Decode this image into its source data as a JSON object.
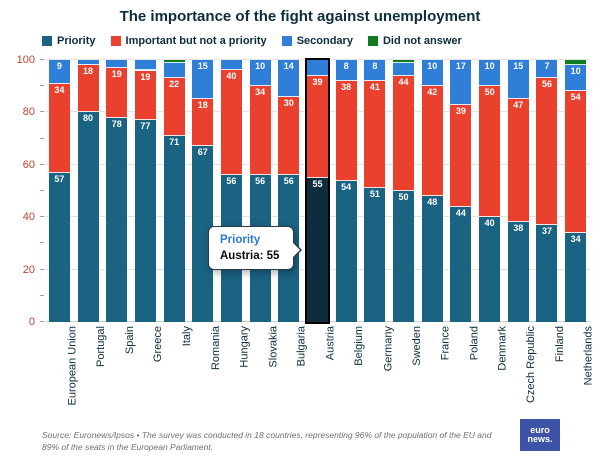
{
  "title": "The importance of the fight against unemployment",
  "chart_data": {
    "type": "bar",
    "stacked": true,
    "title": "The importance of the fight against unemployment",
    "xlabel": "",
    "ylabel": "",
    "ylim": [
      0,
      100
    ],
    "yticks": [
      0,
      20,
      40,
      60,
      80,
      100
    ],
    "minor_tick_step": 10,
    "label_min_value": 7,
    "grid": true,
    "legend_position": "top-left",
    "categories": [
      "European Union",
      "Portugal",
      "Spain",
      "Greece",
      "Italy",
      "Romania",
      "Hungary",
      "Slovakia",
      "Bulgaria",
      "Austria",
      "Belgium",
      "Germany",
      "Sweden",
      "France",
      "Poland",
      "Denmark",
      "Czech Republic",
      "Finland",
      "Netherlands"
    ],
    "series": [
      {
        "name": "Priority",
        "color": "#1a6383",
        "values": [
          57,
          80,
          78,
          77,
          71,
          67,
          56,
          56,
          56,
          55,
          54,
          51,
          50,
          48,
          44,
          40,
          38,
          37,
          34
        ]
      },
      {
        "name": "Important but not a priority",
        "color": "#ea412e",
        "values": [
          34,
          18,
          19,
          19,
          22,
          18,
          40,
          34,
          30,
          39,
          38,
          41,
          44,
          42,
          39,
          50,
          47,
          56,
          54
        ]
      },
      {
        "name": "Secondary",
        "color": "#2f7ed8",
        "values": [
          9,
          2,
          3,
          4,
          6,
          15,
          4,
          10,
          14,
          6,
          8,
          8,
          5,
          10,
          17,
          10,
          15,
          7,
          10
        ]
      },
      {
        "name": "Did not answer",
        "color": "#0f7d1f",
        "values": [
          0,
          0,
          0,
          0,
          1,
          0,
          0,
          0,
          0,
          0,
          0,
          0,
          1,
          0,
          0,
          0,
          0,
          0,
          2
        ]
      }
    ],
    "highlight": {
      "category": "Austria",
      "series": "Priority",
      "fill": "#0d2c3d",
      "outline": "#000000"
    }
  },
  "tooltip": {
    "series": "Priority",
    "text": "Austria: 55"
  },
  "source": {
    "line1": "Source: Euronews/Ipsos • The survey was conducted in 18 countries, representing 96% of the population of the EU and",
    "line2": "89% of the seats in the European Parliament."
  },
  "logo": {
    "line1": "euro",
    "line2": "news."
  }
}
